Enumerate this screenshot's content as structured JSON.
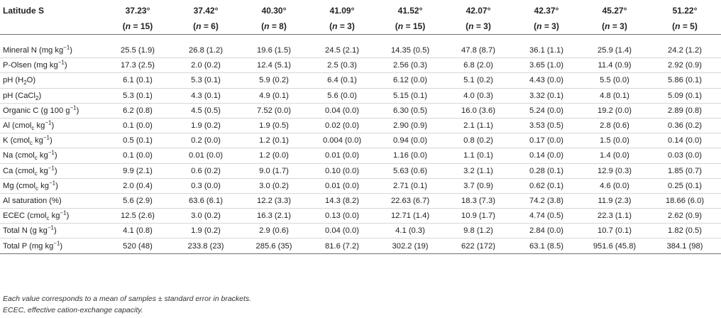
{
  "table": {
    "header_label": "Latitude S",
    "columns": [
      {
        "latitude": "37.23°",
        "n": "15"
      },
      {
        "latitude": "37.42°",
        "n": "6"
      },
      {
        "latitude": "40.30°",
        "n": "8"
      },
      {
        "latitude": "41.09°",
        "n": " 3"
      },
      {
        "latitude": "41.52°",
        "n": "15"
      },
      {
        "latitude": "42.07°",
        "n": "3"
      },
      {
        "latitude": "42.37°",
        "n": " 3"
      },
      {
        "latitude": "45.27°",
        "n": "3"
      },
      {
        "latitude": "51.22°",
        "n": "5"
      }
    ],
    "rows": [
      {
        "label_parts": [
          "Mineral N (mg kg",
          "−1",
          ")"
        ],
        "label_fmt": [
          "t",
          "sup",
          "t"
        ],
        "values": [
          "25.5 (1.9)",
          "26.8 (1.2)",
          "19.6 (1.5)",
          "24.5 (2.1)",
          "14.35 (0.5)",
          "47.8 (8.7)",
          "36.1 (1.1)",
          "25.9 (1.4)",
          "24.2 (1.2)"
        ]
      },
      {
        "label_parts": [
          "P-Olsen (mg kg",
          "−1",
          ")"
        ],
        "label_fmt": [
          "t",
          "sup",
          "t"
        ],
        "values": [
          "17.3 (2.5)",
          "2.0 (0.2)",
          "12.4 (5.1)",
          "2.5 (0.3)",
          "2.56 (0.3)",
          "6.8 (2.0)",
          "3.65 (1.0)",
          "11.4 (0.9)",
          "2.92 (0.9)"
        ]
      },
      {
        "label_parts": [
          "pH (H",
          "2",
          "O)"
        ],
        "label_fmt": [
          "t",
          "sub",
          "t"
        ],
        "values": [
          "6.1 (0.1)",
          "5.3 (0.1)",
          "5.9 (0.2)",
          "6.4 (0.1)",
          "6.12 (0.0)",
          "5.1 (0.2)",
          "4.43 (0.0)",
          "5.5 (0.0)",
          "5.86 (0.1)"
        ]
      },
      {
        "label_parts": [
          "pH (CaCl",
          "2",
          ")"
        ],
        "label_fmt": [
          "t",
          "sub",
          "t"
        ],
        "values": [
          "5.3 (0.1)",
          "4.3 (0.1)",
          "4.9 (0.1)",
          "5.6 (0.0)",
          "5.15 (0.1)",
          "4.0 (0.3)",
          "3.32 (0.1)",
          "4.8 (0.1)",
          "5.09 (0.1)"
        ]
      },
      {
        "label_parts": [
          "Organic C (g 100 g",
          "−1",
          ")"
        ],
        "label_fmt": [
          "t",
          "sup",
          "t"
        ],
        "values": [
          "6.2 (0.8)",
          "4.5 (0.5)",
          "7.52 (0.0)",
          "0.04 (0.0)",
          "6.30 (0.5)",
          "16.0 (3.6)",
          "5.24 (0.0)",
          "19.2 (0.0)",
          "2.89 (0.8)"
        ]
      },
      {
        "label_parts": [
          "Al (cmol",
          "c",
          " kg",
          "−1",
          ")"
        ],
        "label_fmt": [
          "t",
          "sub",
          "t",
          "sup",
          "t"
        ],
        "values": [
          "0.1 (0.0)",
          "1.9 (0.2)",
          "1.9 (0.5)",
          "0.02 (0.0)",
          "2.90 (0.9)",
          "2.1 (1.1)",
          "3.53 (0.5)",
          "2.8 (0.6)",
          "0.36 (0.2)"
        ]
      },
      {
        "label_parts": [
          "K (cmol",
          "c",
          " kg",
          "−1",
          ")"
        ],
        "label_fmt": [
          "t",
          "sub",
          "t",
          "sup",
          "t"
        ],
        "values": [
          "0.5 (0.1)",
          "0.2 (0.0)",
          "1.2 (0.1)",
          "0.004 (0.0)",
          "0.94 (0.0)",
          "0.8 (0.2)",
          "0.17 (0.0)",
          "1.5 (0.0)",
          "0.14 (0.0)"
        ]
      },
      {
        "label_parts": [
          "Na (cmol",
          "c",
          " kg",
          "−1",
          ")"
        ],
        "label_fmt": [
          "t",
          "sub",
          "t",
          "sup",
          "t"
        ],
        "values": [
          "0.1 (0.0)",
          "0.01 (0.0)",
          "1.2 (0.0)",
          "0.01 (0.0)",
          "1.16 (0.0)",
          "1.1 (0.1)",
          "0.14 (0.0)",
          "1.4 (0.0)",
          "0.03 (0.0)"
        ]
      },
      {
        "label_parts": [
          "Ca (cmol",
          "c",
          " kg",
          "−1",
          ")"
        ],
        "label_fmt": [
          "t",
          "sub",
          "t",
          "sup",
          "t"
        ],
        "values": [
          "9.9 (2.1)",
          "0.6 (0.2)",
          "9.0 (1.7)",
          "0.10 (0.0)",
          "5.63 (0.6)",
          "3.2 (1.1)",
          "0.28 (0.1)",
          "12.9 (0.3)",
          "1.85 (0.7)"
        ]
      },
      {
        "label_parts": [
          "Mg (cmol",
          "c",
          " kg",
          "−1",
          ")"
        ],
        "label_fmt": [
          "t",
          "sub",
          "t",
          "sup",
          "t"
        ],
        "values": [
          "2.0 (0.4)",
          "0.3 (0.0)",
          "3.0 (0.2)",
          "0.01 (0.0)",
          "2.71 (0.1)",
          "3.7 (0.9)",
          "0.62 (0.1)",
          "4.6 (0.0)",
          "0.25 (0.1)"
        ]
      },
      {
        "label_parts": [
          "Al saturation (%)"
        ],
        "label_fmt": [
          "t"
        ],
        "values": [
          "5.6 (2.9)",
          "63.6 (6.1)",
          "12.2 (3.3)",
          "14.3 (8.2)",
          "22.63 (6.7)",
          "18.3 (7.3)",
          "74.2 (3.8)",
          "11.9 (2.3)",
          "18.66 (6.0)"
        ]
      },
      {
        "label_parts": [
          "ECEC (cmol",
          "c",
          " kg",
          "−1",
          ")"
        ],
        "label_fmt": [
          "t",
          "sub",
          "t",
          "sup",
          "t"
        ],
        "values": [
          "12.5 (2.6)",
          "3.0 (0.2)",
          "16.3 (2.1)",
          "0.13 (0.0)",
          "12.71 (1.4)",
          "10.9 (1.7)",
          "4.74 (0.5)",
          "22.3 (1.1)",
          "2.62 (0.9)"
        ]
      },
      {
        "label_parts": [
          "Total N (g kg",
          "−1",
          ")"
        ],
        "label_fmt": [
          "t",
          "sup",
          "t"
        ],
        "values": [
          "4.1 (0.8)",
          "1.9 (0.2)",
          "2.9 (0.6)",
          "0.04 (0.0)",
          "4.1 (0.3)",
          "9.8 (1.2)",
          "2.84 (0.0)",
          "10.7 (0.1)",
          "1.82 (0.5)"
        ]
      },
      {
        "label_parts": [
          "Total P (mg kg",
          "−1",
          ")"
        ],
        "label_fmt": [
          "t",
          "sup",
          "t"
        ],
        "values": [
          "520 (48)",
          "233.8 (23)",
          "285.6 (35)",
          "81.6 (7.2)",
          "302.2 (19)",
          "622 (172)",
          "63.1 (8.5)",
          "951.6 (45.8)",
          "384.1 (98)"
        ]
      }
    ]
  },
  "notes": [
    "Each value corresponds to a mean of samples ± standard error in brackets.",
    "ECEC, effective cation-exchange capacity."
  ]
}
